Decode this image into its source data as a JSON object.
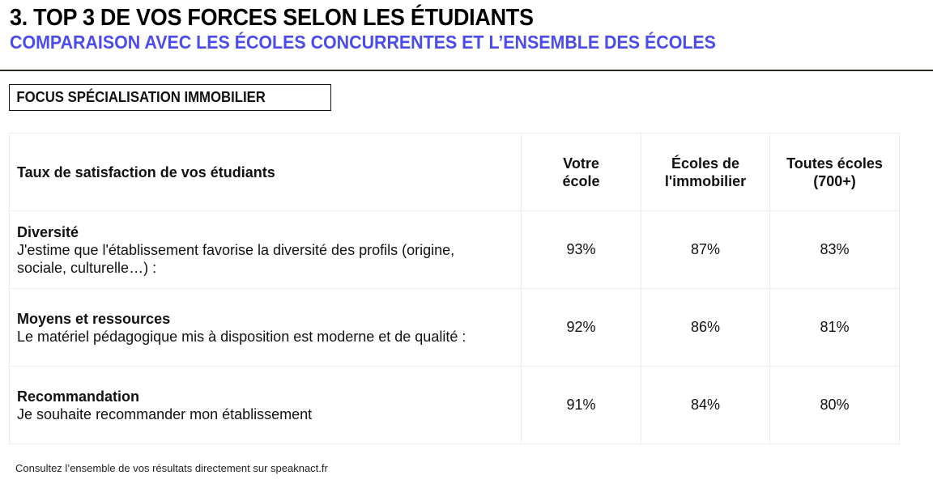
{
  "header": {
    "title": "3. TOP 3 DE VOS FORCES SELON LES ÉTUDIANTS",
    "subtitle": "COMPARAISON AVEC LES ÉCOLES CONCURRENTES ET L’ENSEMBLE DES ÉCOLES",
    "subtitle_color": "#4b4bef"
  },
  "focus_label": "FOCUS SPÉCIALISATION IMMOBILIER",
  "table": {
    "headers": [
      "Taux de satisfaction de vos étudiants",
      "Votre école",
      "Écoles de l'immobilier",
      "Toutes écoles (700+)"
    ],
    "rows": [
      {
        "title": "Diversité",
        "question": "J'estime que l'établissement favorise la diversité des profils (origine, sociale, culturelle…) :",
        "values": [
          "93%",
          "87%",
          "83%"
        ]
      },
      {
        "title": "Moyens et ressources",
        "question": "Le matériel pédagogique mis à disposition est moderne et de qualité :",
        "values": [
          "92%",
          "86%",
          "81%"
        ]
      },
      {
        "title": "Recommandation",
        "question": "Je souhaite recommander mon établissement",
        "values": [
          "91%",
          "84%",
          "80%"
        ]
      }
    ]
  },
  "footer": "Consultez l’ensemble de vos résultats directement sur speaknact.fr"
}
